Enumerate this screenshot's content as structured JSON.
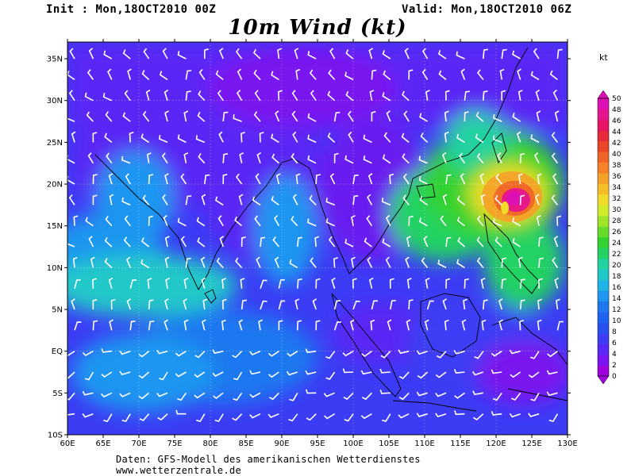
{
  "header": {
    "init": "Init : Mon,18OCT2010 00Z",
    "valid": "Valid: Mon,18OCT2010 06Z",
    "title": "10m Wind (kt)"
  },
  "axes": {
    "lon_labels": [
      "60E",
      "65E",
      "70E",
      "75E",
      "80E",
      "85E",
      "90E",
      "95E",
      "100E",
      "105E",
      "110E",
      "115E",
      "120E",
      "125E",
      "130E"
    ],
    "lat_labels": [
      "35N",
      "30N",
      "25N",
      "20N",
      "15N",
      "10N",
      "5N",
      "EQ",
      "5S",
      "10S"
    ],
    "lat_values": [
      35,
      30,
      25,
      20,
      15,
      10,
      5,
      0,
      -5,
      -10
    ],
    "lon_range": [
      60,
      130
    ],
    "lat_range": [
      -10,
      37
    ]
  },
  "colorbar": {
    "unit": "kt",
    "levels": [
      "0",
      "2",
      "4",
      "6",
      "8",
      "10",
      "12",
      "14",
      "16",
      "18",
      "20",
      "22",
      "24",
      "26",
      "28",
      "30",
      "32",
      "34",
      "36",
      "38",
      "40",
      "42",
      "44",
      "46",
      "48",
      "50"
    ],
    "colors": [
      "#a000e0",
      "#7a14f0",
      "#5a28f5",
      "#3c3cf5",
      "#2850f0",
      "#1e64f0",
      "#1e78f0",
      "#1e96f0",
      "#1eb4e6",
      "#20c8c8",
      "#20d2a0",
      "#24d264",
      "#32d232",
      "#64dc28",
      "#a0e628",
      "#d2eb28",
      "#f0dc28",
      "#f5be28",
      "#f5a028",
      "#f58228",
      "#f06428",
      "#eb4628",
      "#e6283c",
      "#e61464",
      "#e6148c",
      "#dc10b4"
    ]
  },
  "footer": {
    "line1": "Daten: GFS-Modell des amerikanischen Wetterdienstes",
    "line2": "www.wetterzentrale.de"
  }
}
